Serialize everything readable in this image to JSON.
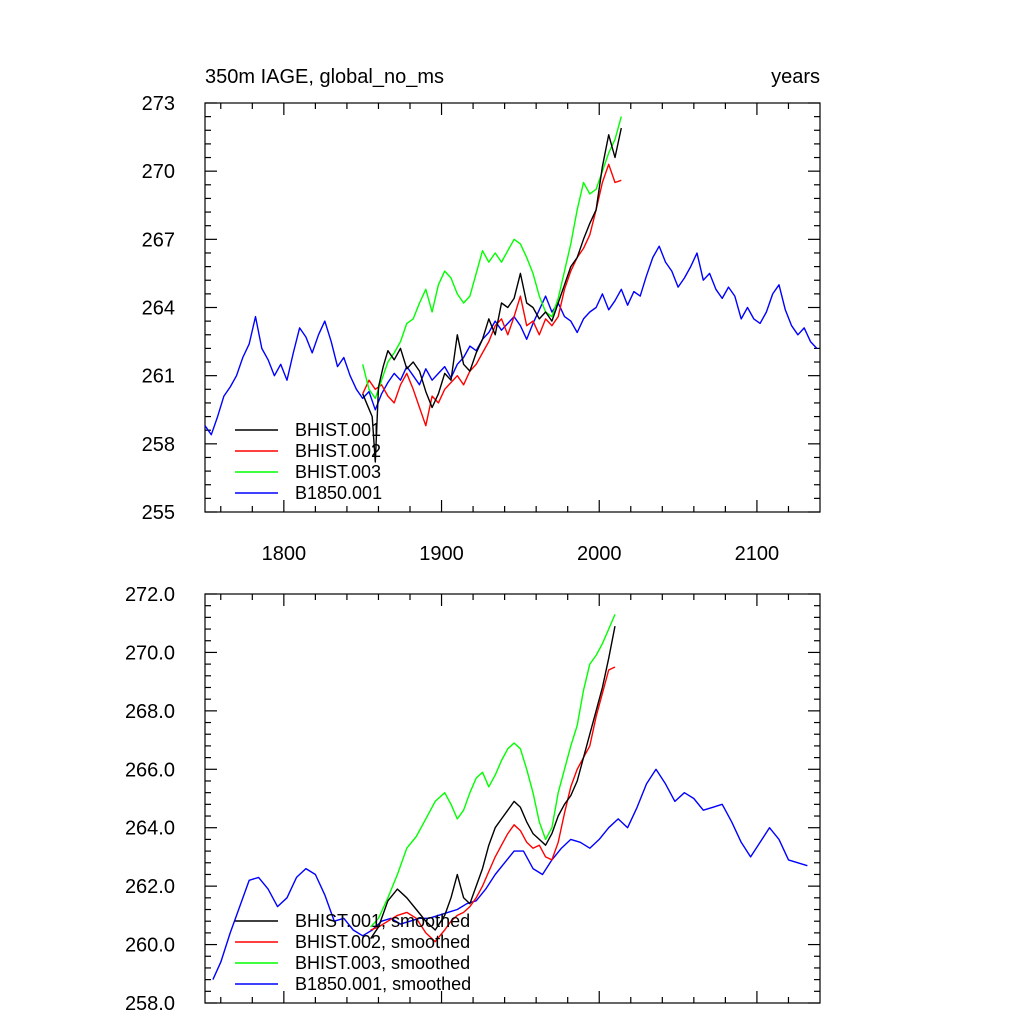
{
  "chart_data": [
    {
      "type": "line",
      "title_left": "350m IAGE, global_no_ms",
      "title_right": "years",
      "xlabel": "",
      "ylabel": "",
      "xlim": [
        1750,
        2140
      ],
      "ylim": [
        255,
        273
      ],
      "yticks": [
        255,
        258,
        261,
        264,
        267,
        270,
        273
      ],
      "ytick_labels": [
        "255",
        "258",
        "261",
        "264",
        "267",
        "270",
        "273"
      ],
      "xticks": [
        1800,
        1900,
        2000,
        2100
      ],
      "xtick_labels": [
        "1800",
        "1900",
        "2000",
        "2100"
      ],
      "legend_position": "bottom-left",
      "series": [
        {
          "name": "BHIST.001",
          "color": "#000000",
          "x": [
            1850,
            1853,
            1856,
            1858,
            1860,
            1863,
            1866,
            1870,
            1874,
            1878,
            1882,
            1886,
            1890,
            1894,
            1898,
            1902,
            1906,
            1910,
            1914,
            1918,
            1922,
            1926,
            1930,
            1934,
            1938,
            1942,
            1946,
            1950,
            1954,
            1958,
            1962,
            1966,
            1970,
            1974,
            1978,
            1982,
            1986,
            1990,
            1994,
            1998,
            2002,
            2006,
            2010,
            2014
          ],
          "y": [
            260.2,
            259.7,
            259.2,
            257.2,
            260.5,
            261.4,
            262.1,
            261.7,
            262.2,
            261.3,
            261.6,
            261.2,
            260.3,
            259.6,
            260.2,
            261.1,
            260.8,
            262.8,
            261.5,
            261.2,
            262.0,
            262.6,
            263.5,
            262.8,
            264.2,
            264.0,
            264.4,
            265.5,
            264.2,
            264.0,
            263.5,
            263.8,
            263.4,
            264.2,
            265.0,
            265.8,
            266.2,
            267.0,
            267.7,
            268.3,
            270.2,
            271.6,
            270.6,
            271.9
          ]
        },
        {
          "name": "BHIST.002",
          "color": "#ff0000",
          "x": [
            1850,
            1854,
            1858,
            1862,
            1866,
            1870,
            1874,
            1878,
            1882,
            1886,
            1890,
            1894,
            1898,
            1902,
            1906,
            1910,
            1914,
            1918,
            1922,
            1926,
            1930,
            1934,
            1938,
            1942,
            1946,
            1950,
            1954,
            1958,
            1962,
            1966,
            1970,
            1974,
            1978,
            1982,
            1986,
            1990,
            1994,
            1998,
            2002,
            2006,
            2010,
            2014
          ],
          "y": [
            260.2,
            260.8,
            260.4,
            260.6,
            260.1,
            259.8,
            260.6,
            261.1,
            260.4,
            259.6,
            258.8,
            260.1,
            259.8,
            260.4,
            260.7,
            261.0,
            260.6,
            261.2,
            261.5,
            262.0,
            262.5,
            263.2,
            263.5,
            262.8,
            263.6,
            264.5,
            263.2,
            263.4,
            262.8,
            263.5,
            263.2,
            263.6,
            264.8,
            265.6,
            266.2,
            266.6,
            267.2,
            268.3,
            269.5,
            270.3,
            269.5,
            269.6
          ]
        },
        {
          "name": "BHIST.003",
          "color": "#00ff00",
          "x": [
            1850,
            1854,
            1858,
            1862,
            1866,
            1870,
            1874,
            1878,
            1882,
            1886,
            1890,
            1894,
            1898,
            1902,
            1906,
            1910,
            1914,
            1918,
            1922,
            1926,
            1930,
            1934,
            1938,
            1942,
            1946,
            1950,
            1954,
            1958,
            1962,
            1966,
            1970,
            1974,
            1978,
            1982,
            1986,
            1990,
            1994,
            1998,
            2002,
            2006,
            2010,
            2014
          ],
          "y": [
            261.5,
            260.4,
            260.0,
            260.8,
            261.6,
            262.0,
            262.5,
            263.3,
            263.5,
            264.2,
            264.8,
            263.8,
            265.0,
            265.6,
            265.3,
            264.6,
            264.2,
            264.5,
            265.5,
            266.5,
            266.0,
            266.4,
            266.0,
            266.5,
            267.0,
            266.8,
            266.2,
            265.5,
            264.5,
            263.8,
            263.6,
            264.4,
            265.6,
            266.8,
            268.3,
            269.5,
            269.0,
            269.2,
            270.0,
            270.8,
            271.4,
            272.4
          ]
        },
        {
          "name": "B1850.001",
          "color": "#0000ff",
          "x": [
            1750,
            1754,
            1758,
            1762,
            1766,
            1770,
            1774,
            1778,
            1782,
            1786,
            1790,
            1794,
            1798,
            1802,
            1806,
            1810,
            1814,
            1818,
            1822,
            1826,
            1830,
            1834,
            1838,
            1842,
            1846,
            1850,
            1854,
            1858,
            1862,
            1866,
            1870,
            1874,
            1878,
            1882,
            1886,
            1890,
            1894,
            1898,
            1902,
            1906,
            1910,
            1914,
            1918,
            1922,
            1926,
            1930,
            1934,
            1938,
            1942,
            1946,
            1950,
            1954,
            1958,
            1962,
            1966,
            1970,
            1974,
            1978,
            1982,
            1986,
            1990,
            1994,
            1998,
            2002,
            2006,
            2010,
            2014,
            2018,
            2022,
            2026,
            2030,
            2034,
            2038,
            2042,
            2046,
            2050,
            2054,
            2058,
            2062,
            2066,
            2070,
            2074,
            2078,
            2082,
            2086,
            2090,
            2094,
            2098,
            2102,
            2106,
            2110,
            2114,
            2118,
            2122,
            2126,
            2130,
            2134,
            2138
          ],
          "y": [
            258.8,
            258.4,
            259.2,
            260.1,
            260.5,
            261.0,
            261.8,
            262.4,
            263.6,
            262.2,
            261.7,
            261.0,
            261.5,
            260.8,
            262.0,
            263.1,
            262.7,
            262.0,
            262.8,
            263.4,
            262.5,
            261.4,
            261.8,
            261.0,
            260.4,
            260.0,
            260.3,
            259.5,
            260.2,
            260.7,
            261.1,
            260.8,
            261.4,
            261.0,
            260.6,
            261.3,
            260.8,
            261.1,
            261.4,
            260.9,
            261.5,
            261.8,
            262.3,
            262.1,
            262.6,
            262.9,
            263.4,
            263.0,
            263.3,
            263.6,
            263.2,
            262.6,
            263.3,
            263.9,
            264.5,
            263.8,
            264.2,
            263.6,
            263.4,
            262.9,
            263.5,
            263.8,
            264.0,
            264.6,
            263.9,
            264.3,
            264.8,
            264.1,
            264.7,
            264.5,
            265.4,
            266.2,
            266.7,
            266.0,
            265.6,
            264.9,
            265.3,
            265.8,
            266.4,
            265.2,
            265.5,
            264.8,
            264.4,
            264.9,
            264.5,
            263.5,
            264.0,
            263.5,
            263.3,
            263.8,
            264.6,
            265.0,
            263.9,
            263.2,
            262.8,
            263.1,
            262.5,
            262.2
          ]
        }
      ],
      "legend": [
        "BHIST.001",
        "BHIST.002",
        "BHIST.003",
        "B1850.001"
      ]
    },
    {
      "type": "line",
      "title_left": "",
      "title_right": "",
      "xlabel": "",
      "ylabel": "",
      "xlim": [
        1750,
        2140
      ],
      "ylim": [
        258.0,
        272.0
      ],
      "yticks": [
        258,
        260,
        262,
        264,
        266,
        268,
        270,
        272
      ],
      "ytick_labels": [
        "258.0",
        "260.0",
        "262.0",
        "264.0",
        "266.0",
        "268.0",
        "270.0",
        "272.0"
      ],
      "xticks": [
        1800,
        1900,
        2000,
        2100
      ],
      "xtick_labels": [],
      "legend_position": "bottom-left",
      "series": [
        {
          "name": "BHIST.001, smoothed",
          "color": "#000000",
          "x": [
            1855,
            1860,
            1866,
            1872,
            1878,
            1884,
            1890,
            1896,
            1902,
            1906,
            1910,
            1914,
            1918,
            1922,
            1926,
            1930,
            1934,
            1938,
            1942,
            1946,
            1950,
            1954,
            1958,
            1962,
            1966,
            1970,
            1974,
            1978,
            1982,
            1986,
            1990,
            1994,
            1998,
            2002,
            2006,
            2010
          ],
          "y": [
            260.2,
            260.6,
            261.5,
            261.9,
            261.6,
            261.2,
            260.8,
            260.5,
            261.0,
            261.6,
            262.4,
            261.6,
            261.4,
            262.0,
            262.6,
            263.4,
            264.0,
            264.3,
            264.6,
            264.9,
            264.7,
            264.2,
            263.8,
            263.6,
            263.4,
            263.8,
            264.4,
            264.8,
            265.1,
            265.6,
            266.4,
            267.2,
            268.0,
            268.8,
            269.8,
            270.9
          ]
        },
        {
          "name": "BHIST.002, smoothed",
          "color": "#ff0000",
          "x": [
            1855,
            1860,
            1866,
            1872,
            1878,
            1884,
            1890,
            1896,
            1902,
            1906,
            1910,
            1914,
            1918,
            1922,
            1926,
            1930,
            1934,
            1938,
            1942,
            1946,
            1950,
            1954,
            1958,
            1962,
            1966,
            1970,
            1974,
            1978,
            1982,
            1986,
            1990,
            1994,
            1998,
            2002,
            2006,
            2010
          ],
          "y": [
            260.5,
            260.6,
            260.8,
            261.0,
            261.1,
            260.9,
            260.4,
            260.1,
            260.5,
            260.8,
            261.0,
            261.1,
            261.3,
            261.6,
            262.0,
            262.5,
            263.0,
            263.4,
            263.8,
            264.1,
            263.9,
            263.5,
            263.3,
            263.4,
            263.0,
            262.9,
            263.5,
            264.5,
            265.4,
            266.0,
            266.4,
            266.8,
            267.8,
            268.6,
            269.4,
            269.5
          ]
        },
        {
          "name": "BHIST.003, smoothed",
          "color": "#00ff00",
          "x": [
            1855,
            1860,
            1866,
            1872,
            1878,
            1884,
            1890,
            1896,
            1902,
            1906,
            1910,
            1914,
            1918,
            1922,
            1926,
            1930,
            1934,
            1938,
            1942,
            1946,
            1950,
            1954,
            1958,
            1962,
            1966,
            1970,
            1974,
            1978,
            1982,
            1986,
            1990,
            1994,
            1998,
            2002,
            2006,
            2010
          ],
          "y": [
            260.6,
            260.9,
            261.6,
            262.4,
            263.3,
            263.7,
            264.3,
            264.9,
            265.2,
            264.8,
            264.3,
            264.6,
            265.2,
            265.7,
            265.9,
            265.4,
            265.8,
            266.3,
            266.7,
            266.9,
            266.7,
            266.0,
            265.2,
            264.2,
            263.6,
            264.0,
            265.2,
            266.0,
            266.8,
            267.5,
            268.7,
            269.6,
            269.9,
            270.3,
            270.8,
            271.3
          ]
        },
        {
          "name": "B1850.001, smoothed",
          "color": "#0000ff",
          "x": [
            1755,
            1760,
            1766,
            1772,
            1778,
            1784,
            1790,
            1796,
            1802,
            1808,
            1814,
            1820,
            1826,
            1832,
            1838,
            1844,
            1850,
            1856,
            1862,
            1868,
            1874,
            1880,
            1886,
            1892,
            1898,
            1904,
            1910,
            1916,
            1922,
            1928,
            1934,
            1940,
            1946,
            1952,
            1958,
            1964,
            1970,
            1976,
            1982,
            1988,
            1994,
            2000,
            2006,
            2012,
            2018,
            2024,
            2030,
            2036,
            2042,
            2048,
            2054,
            2060,
            2066,
            2072,
            2078,
            2084,
            2090,
            2096,
            2102,
            2108,
            2114,
            2120,
            2126,
            2132
          ],
          "y": [
            258.8,
            259.4,
            260.4,
            261.3,
            262.2,
            262.3,
            261.9,
            261.3,
            261.6,
            262.3,
            262.6,
            262.4,
            261.7,
            260.8,
            260.9,
            260.5,
            260.3,
            260.5,
            260.8,
            260.9,
            260.7,
            260.8,
            260.9,
            260.9,
            261.0,
            261.1,
            261.2,
            261.4,
            261.5,
            261.9,
            262.4,
            262.8,
            263.2,
            263.2,
            262.6,
            262.4,
            262.9,
            263.3,
            263.6,
            263.5,
            263.3,
            263.6,
            264.0,
            264.3,
            264.0,
            264.7,
            265.5,
            266.0,
            265.5,
            264.9,
            265.2,
            265.0,
            264.6,
            264.7,
            264.8,
            264.2,
            263.5,
            263.0,
            263.5,
            264.0,
            263.6,
            262.9,
            262.8,
            262.7
          ]
        }
      ],
      "legend": [
        "BHIST.001, smoothed",
        "BHIST.002, smoothed",
        "BHIST.003, smoothed",
        "B1850.001, smoothed"
      ]
    }
  ]
}
